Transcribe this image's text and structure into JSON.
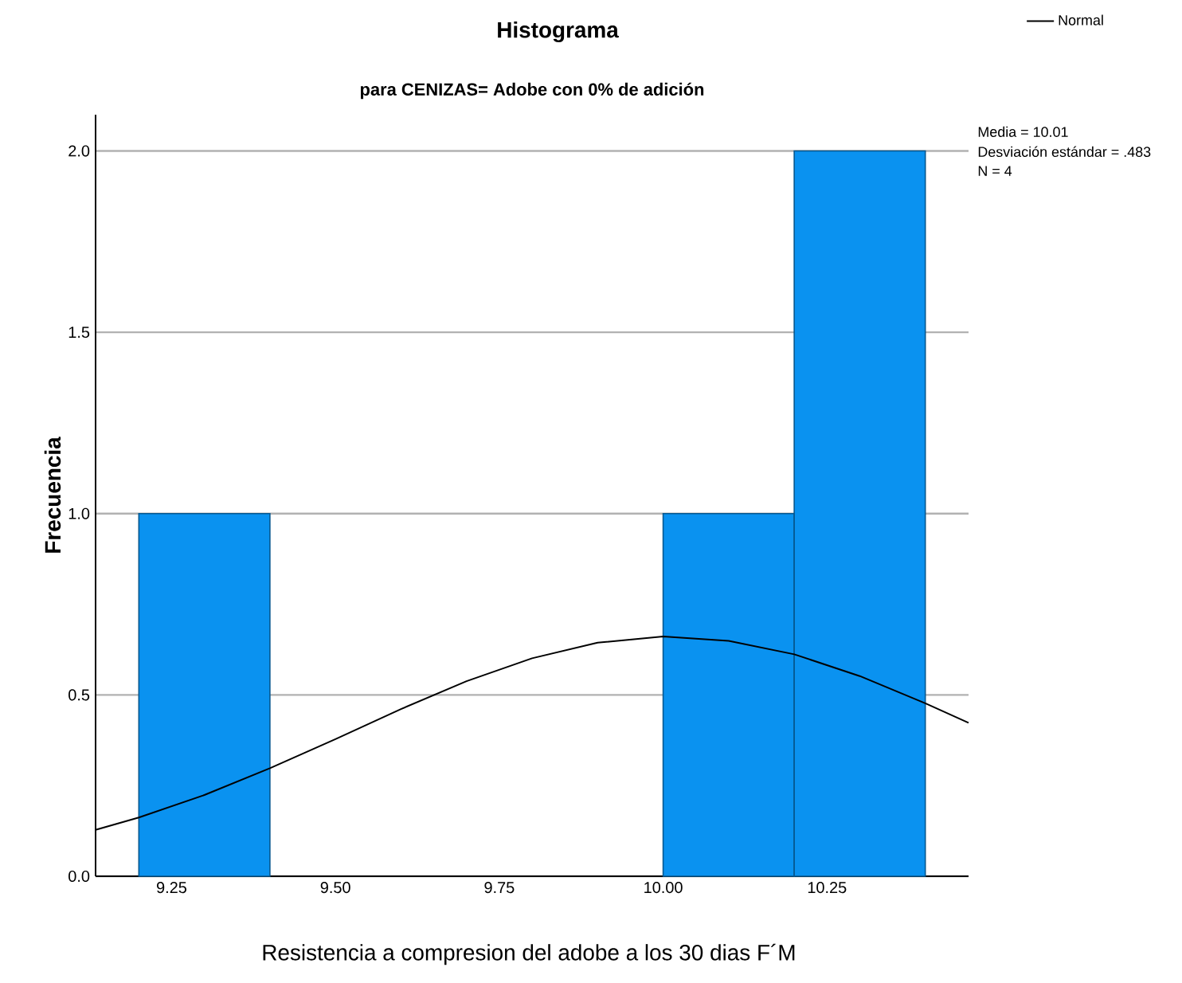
{
  "chart_data": {
    "type": "histogram",
    "title": "Histograma",
    "subtitle": "para CENIZAS= Adobe con 0% de adición",
    "xlabel": "Resistencia a compresion del adobe a los 30 dias F´M",
    "ylabel": "Frecuencia",
    "series": [
      {
        "color": "#0a92f0",
        "bins": [
          9.2,
          9.4,
          9.6,
          9.8,
          10.0,
          10.2,
          10.4
        ],
        "values": [
          1,
          0,
          0,
          0,
          1,
          2
        ]
      },
      {
        "type": "line",
        "name": "Normal",
        "color": "#000000",
        "x": [
          9.134,
          9.2,
          9.3,
          9.4,
          9.5,
          9.6,
          9.7,
          9.8,
          9.9,
          10.0,
          10.1,
          10.2,
          10.3,
          10.4,
          10.466
        ],
        "values": [
          0.128,
          0.162,
          0.224,
          0.298,
          0.378,
          0.461,
          0.538,
          0.601,
          0.644,
          0.661,
          0.649,
          0.612,
          0.552,
          0.477,
          0.423
        ]
      }
    ],
    "xlim": [
      9.134,
      10.466
    ],
    "ylim": [
      0,
      2.1
    ],
    "xticks": [
      {
        "value": 9.25,
        "label": "9.25"
      },
      {
        "value": 9.5,
        "label": "9.50"
      },
      {
        "value": 9.75,
        "label": "9.75"
      },
      {
        "value": 10,
        "label": "10.00"
      },
      {
        "value": 10.25,
        "label": "10.25"
      }
    ],
    "yticks": [
      {
        "value": 0,
        "label": "0.0"
      },
      {
        "value": 0.5,
        "label": "0.5"
      },
      {
        "value": 1,
        "label": "1.0"
      },
      {
        "value": 1.5,
        "label": "1.5"
      },
      {
        "value": 2,
        "label": "2.0"
      }
    ],
    "grid": "y",
    "legend": "top right",
    "annotations": [
      "Media = 10.01",
      "Desviación estándar = .483",
      "N = 4"
    ]
  }
}
